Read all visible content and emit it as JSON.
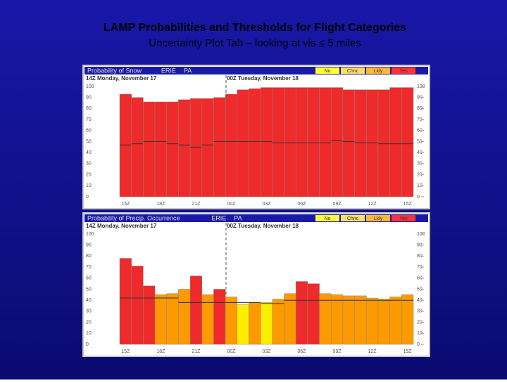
{
  "title": "LAMP Probabilities and Thresholds for Flight Categories",
  "subtitle": "Uncertainty Plot Tab – looking at vis ≤ 5 miles",
  "chart_data": [
    {
      "type": "bar",
      "title": "Probability of Snow",
      "location": "ERIE",
      "state": "PA",
      "legend": [
        {
          "name": "No",
          "color": "#ffff33"
        },
        {
          "name": "Chnc",
          "color": "#ffe066"
        },
        {
          "name": "Lkly",
          "color": "#ffb833"
        },
        {
          "name": "Yes",
          "color": "#ff3333"
        }
      ],
      "date_labels": [
        "14Z Monday, November 17",
        "00Z Tuesday, November 18"
      ],
      "categories": [
        "15Z",
        null,
        null,
        "18Z",
        null,
        null,
        "21Z",
        null,
        null,
        "00Z",
        null,
        null,
        "03Z",
        null,
        null,
        "06Z",
        null,
        null,
        "09Z",
        null,
        null,
        "12Z",
        null,
        null,
        "15Z"
      ],
      "values": [
        93,
        90,
        86,
        86,
        86,
        88,
        89,
        89,
        90,
        93,
        97,
        98,
        99,
        99,
        99,
        99,
        99,
        99,
        99,
        97,
        97,
        97,
        97,
        99,
        99
      ],
      "thresholds": [
        47,
        48,
        50,
        50,
        48,
        47,
        45,
        47,
        50,
        50,
        50,
        50,
        50,
        49,
        49,
        49,
        49,
        49,
        51,
        50,
        49,
        49,
        48,
        48,
        48
      ],
      "colors": [
        "#ee2a2a",
        "#ee2a2a",
        "#ee2a2a",
        "#ee2a2a",
        "#ee2a2a",
        "#ee2a2a",
        "#ee2a2a",
        "#ee2a2a",
        "#ee2a2a",
        "#ee2a2a",
        "#ee2a2a",
        "#ee2a2a",
        "#ee2a2a",
        "#ee2a2a",
        "#ee2a2a",
        "#ee2a2a",
        "#ee2a2a",
        "#ee2a2a",
        "#ee2a2a",
        "#ee2a2a",
        "#ee2a2a",
        "#ee2a2a",
        "#ee2a2a",
        "#ee2a2a",
        "#ee2a2a"
      ],
      "ylim": [
        0,
        100
      ],
      "yticks": [
        0,
        10,
        20,
        30,
        40,
        50,
        60,
        70,
        80,
        90,
        100
      ]
    },
    {
      "type": "bar",
      "title": "Probability of Precip. Occurrence",
      "location": "ERIE",
      "state": "PA",
      "legend": [
        {
          "name": "No",
          "color": "#ffff33"
        },
        {
          "name": "Chnc",
          "color": "#ffe066"
        },
        {
          "name": "Lkly",
          "color": "#ffb833"
        },
        {
          "name": "Yes",
          "color": "#ff3333"
        }
      ],
      "date_labels": [
        "14Z Monday, November 17",
        "00Z Tuesday, November 18"
      ],
      "categories": [
        "15Z",
        null,
        null,
        "18Z",
        null,
        null,
        "21Z",
        null,
        null,
        "00Z",
        null,
        null,
        "03Z",
        null,
        null,
        "06Z",
        null,
        null,
        "09Z",
        null,
        null,
        "12Z",
        null,
        null,
        "15Z"
      ],
      "values": [
        78,
        71,
        53,
        45,
        46,
        50,
        62,
        45,
        50,
        43,
        36,
        38,
        38,
        41,
        46,
        57,
        55,
        46,
        45,
        44,
        44,
        42,
        41,
        43,
        45
      ],
      "thresholds": [
        42,
        42,
        42,
        42,
        42,
        38,
        38,
        38,
        38,
        38,
        38,
        38,
        37,
        37,
        40,
        40,
        40,
        40,
        40,
        40,
        40,
        40,
        40,
        40,
        40
      ],
      "colors": [
        "#ee2a2a",
        "#ee2a2a",
        "#ee2a2a",
        "#ff9900",
        "#ff9900",
        "#ff9900",
        "#ee2a2a",
        "#ff9900",
        "#ee2a2a",
        "#ff9900",
        "#ffee00",
        "#ff9900",
        "#ffee00",
        "#ff9900",
        "#ff9900",
        "#ee2a2a",
        "#ee2a2a",
        "#ff9900",
        "#ff9900",
        "#ff9900",
        "#ff9900",
        "#ff9900",
        "#ff9900",
        "#ff9900",
        "#ff9900"
      ],
      "ylim": [
        0,
        100
      ],
      "yticks": [
        0,
        10,
        20,
        30,
        40,
        50,
        60,
        70,
        80,
        90,
        100
      ]
    }
  ]
}
